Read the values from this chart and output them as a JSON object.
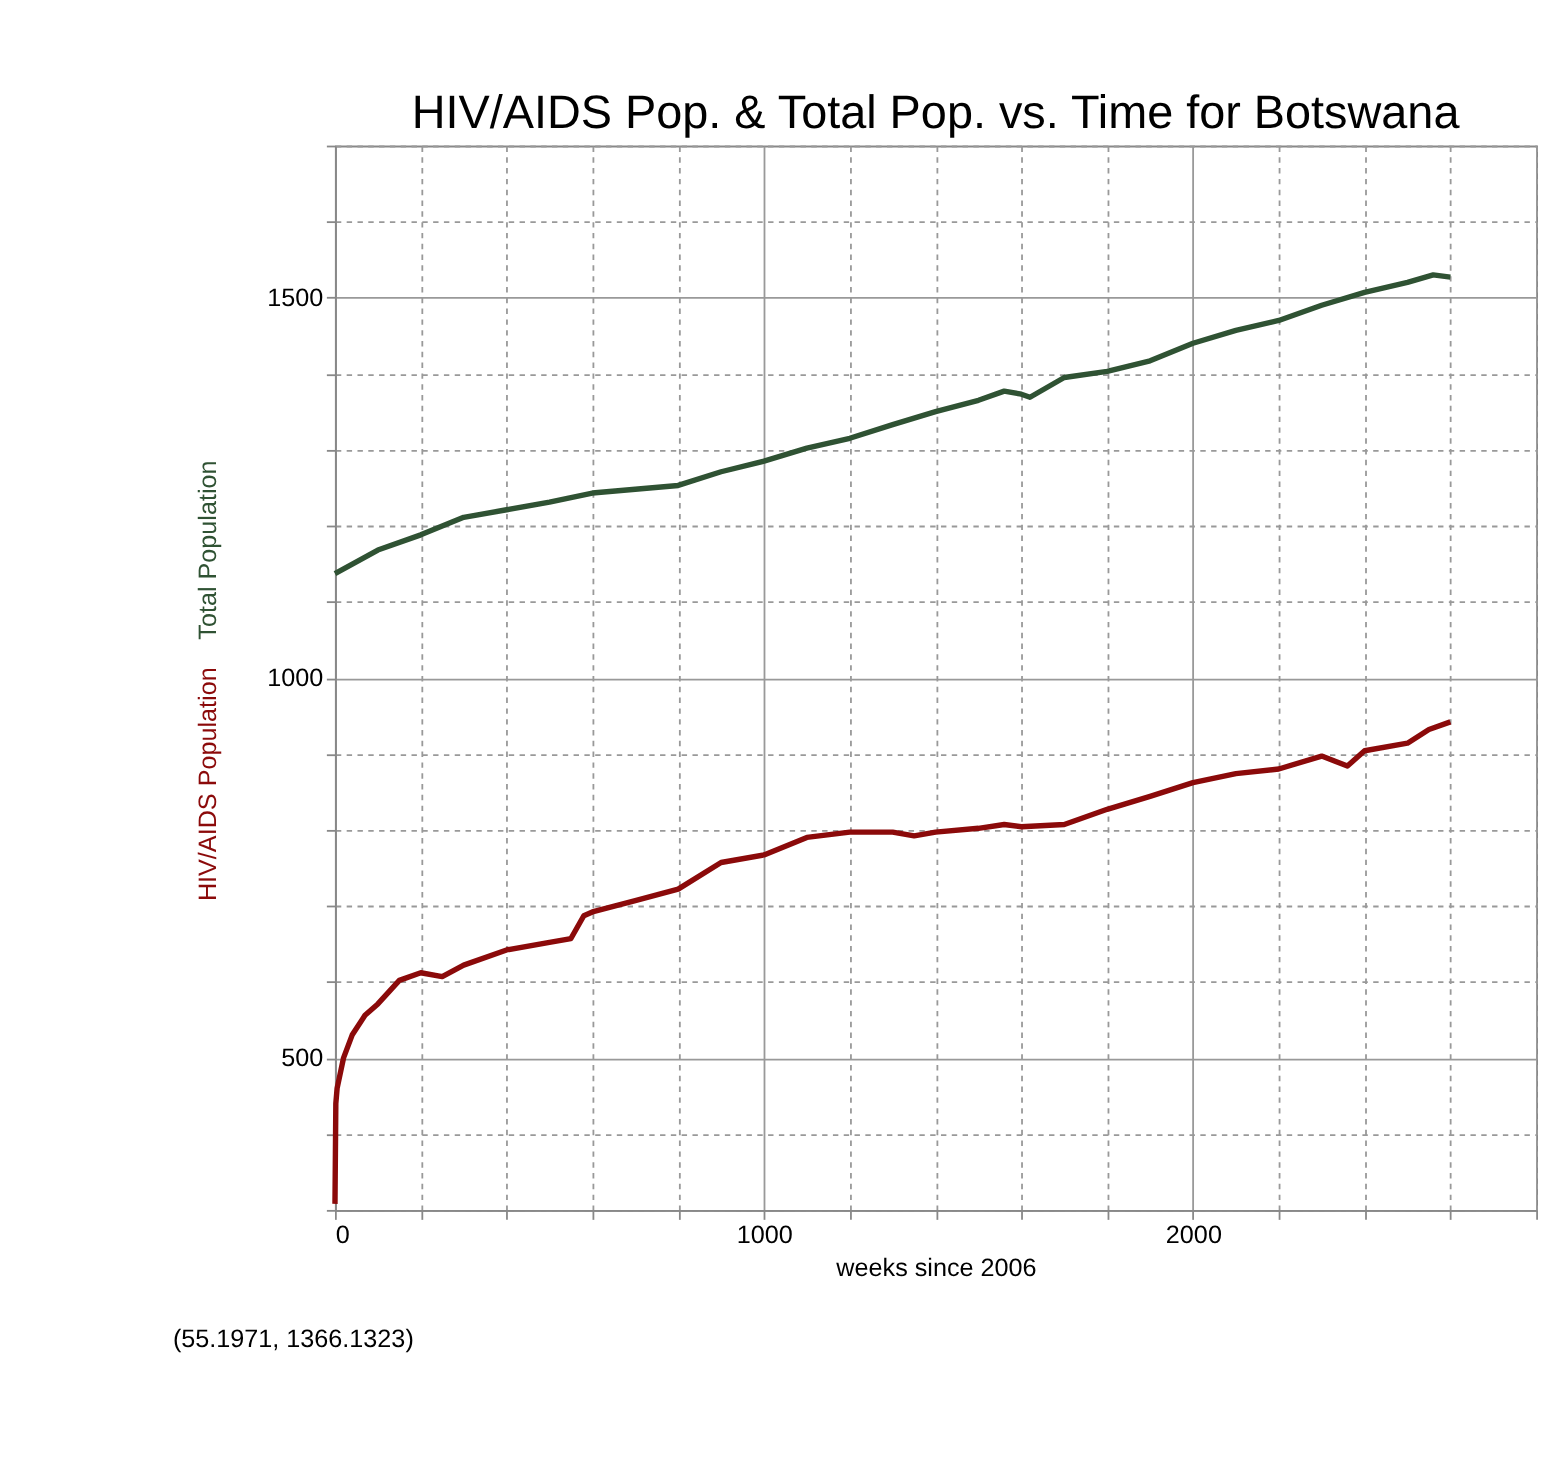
{
  "chart_data": {
    "type": "line",
    "title": "HIV/AIDS Pop. & Total Pop. vs. Time for Botswana",
    "xlabel": "weeks since 2006",
    "annotations": [
      "(55.1971, 1366.1323)"
    ],
    "xlim": [
      0,
      2800
    ],
    "xticks": [
      0,
      {
        "value": 200,
        "label": null
      },
      {
        "value": 400,
        "label": null
      },
      {
        "value": 600,
        "label": null
      },
      {
        "value": 800,
        "label": null
      },
      1000,
      {
        "value": 1200,
        "label": null
      },
      {
        "value": 1400,
        "label": null
      },
      {
        "value": 1600,
        "label": null
      },
      {
        "value": 1800,
        "label": null
      },
      2000,
      {
        "value": 2200,
        "label": null
      },
      {
        "value": 2400,
        "label": null
      },
      {
        "value": 2600,
        "label": null
      },
      {
        "value": 2800,
        "label": null
      }
    ],
    "ylim": [
      300,
      1700
    ],
    "yticks": [
      {
        "value": 300,
        "label": null
      },
      {
        "value": 400,
        "label": null
      },
      500,
      {
        "value": 600,
        "label": null
      },
      {
        "value": 700,
        "label": null
      },
      {
        "value": 800,
        "label": null
      },
      {
        "value": 900,
        "label": null
      },
      1000,
      {
        "value": 1100,
        "label": null
      },
      {
        "value": 1200,
        "label": null
      },
      {
        "value": 1300,
        "label": null
      },
      {
        "value": 1400,
        "label": null
      },
      1500,
      {
        "value": 1600,
        "label": null
      },
      {
        "value": 1700,
        "label": null
      }
    ],
    "grid": true,
    "line_style": "solid",
    "marker": "none",
    "series": [
      {
        "name": "Total Population",
        "color": "#2f5233",
        "x": [
          0,
          100,
          200,
          300,
          400,
          500,
          600,
          700,
          800,
          900,
          1000,
          1100,
          1200,
          1300,
          1400,
          1500,
          1560,
          1600,
          1620,
          1700,
          1800,
          1900,
          2000,
          2100,
          2200,
          2300,
          2400,
          2500,
          2560,
          2600
        ],
        "values": [
          1137,
          1168,
          1188,
          1211,
          1221,
          1231,
          1243,
          1248,
          1253,
          1271,
          1285,
          1302,
          1315,
          1333,
          1350,
          1365,
          1377,
          1373,
          1369,
          1395,
          1403,
          1417,
          1440,
          1457,
          1470,
          1490,
          1507,
          1520,
          1530,
          1527
        ]
      },
      {
        "name": "HIV/AIDS Population",
        "color": "#8b0a0a",
        "x": [
          0,
          2,
          5,
          20,
          40,
          70,
          100,
          150,
          200,
          250,
          300,
          400,
          500,
          550,
          580,
          600,
          700,
          800,
          900,
          1000,
          1100,
          1200,
          1300,
          1350,
          1400,
          1500,
          1560,
          1600,
          1700,
          1800,
          1900,
          2000,
          2100,
          2200,
          2300,
          2360,
          2400,
          2500,
          2550,
          2600
        ],
        "values": [
          308,
          440,
          460,
          500,
          530,
          556,
          571,
          602,
          612,
          607,
          622,
          642,
          652,
          657,
          687,
          692,
          707,
          722,
          757,
          767,
          790,
          797,
          797,
          792,
          797,
          802,
          807,
          804,
          807,
          827,
          844,
          862,
          874,
          880,
          897,
          884,
          904,
          914,
          932,
          942
        ]
      }
    ]
  }
}
